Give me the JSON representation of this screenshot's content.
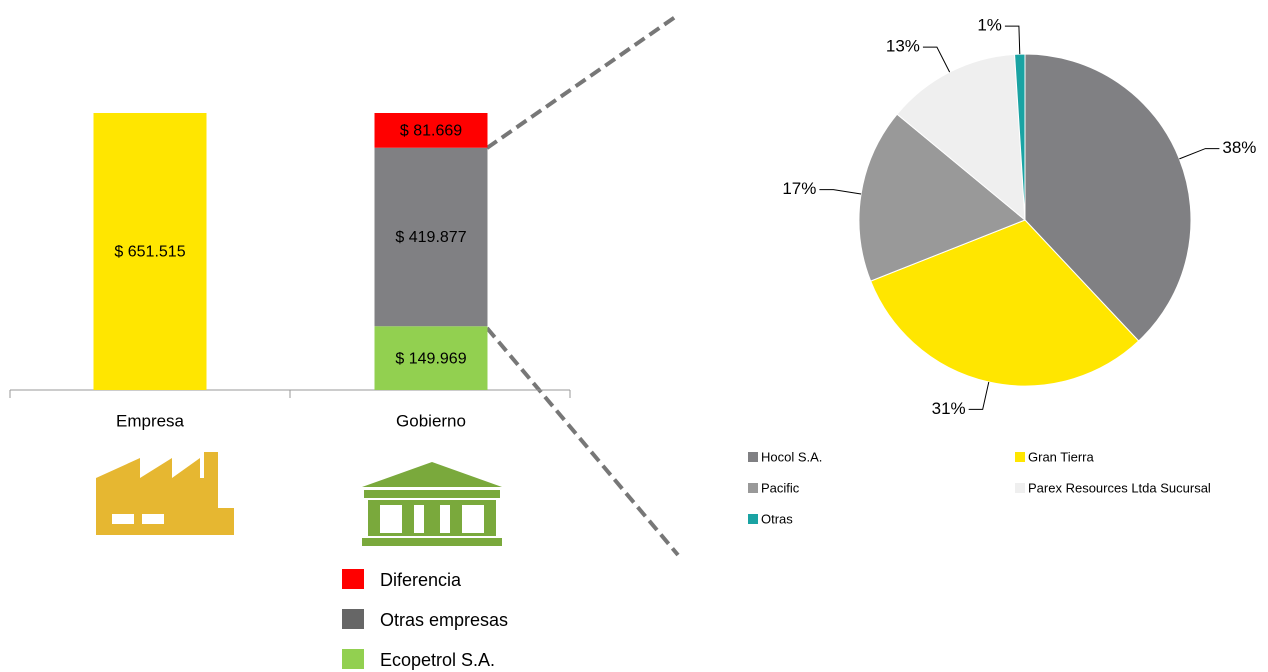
{
  "chart_data": [
    {
      "type": "bar",
      "stacked": true,
      "categories": [
        "Empresa",
        "Gobierno"
      ],
      "series": [
        {
          "color": "#ffe600",
          "values": [
            651515,
            null
          ],
          "value_labels": [
            "$ 651.515",
            null
          ]
        },
        {
          "name": "Ecopetrol S.A.",
          "color": "#92d050",
          "values": [
            null,
            149969
          ],
          "value_labels": [
            null,
            "$ 149.969"
          ]
        },
        {
          "name": "Otras empresas",
          "color": "#808083",
          "legend_color": "#666666",
          "values": [
            null,
            419877
          ],
          "value_labels": [
            null,
            "$ 419.877"
          ]
        },
        {
          "name": "Diferencia",
          "color": "#ff0000",
          "values": [
            null,
            81669
          ],
          "value_labels": [
            null,
            "$ 81.669"
          ]
        }
      ]
    },
    {
      "type": "pie",
      "categories": [
        "Hocol S.A.",
        "Gran Tierra",
        "Pacific",
        "Parex Resources Ltda Sucursal",
        "Otras"
      ],
      "values": [
        38,
        31,
        17,
        13,
        1
      ],
      "value_labels": [
        "38%",
        "31%",
        "17%",
        "13%",
        "1%"
      ],
      "colors": [
        "#808083",
        "#ffe600",
        "#999999",
        "#efefef",
        "#1aa3a3"
      ]
    }
  ]
}
